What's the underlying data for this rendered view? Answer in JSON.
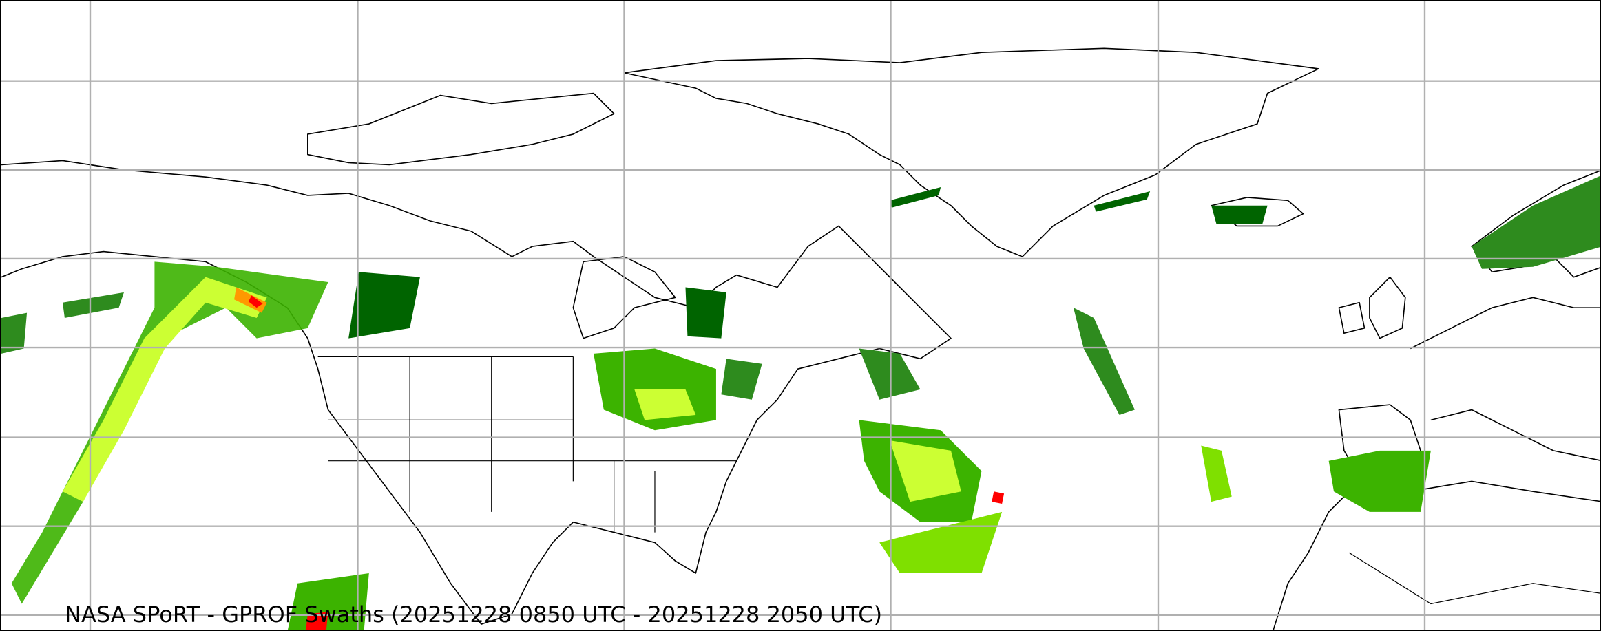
{
  "title": "NASA SPoRT - GPROF Swaths (20251228 0850 UTC - 20251228 2050 UTC)",
  "map": {
    "background": "#ffffff",
    "gridline_color": "#b0b0b0",
    "coastline_color": "#000000",
    "precip_colors": [
      "#006400",
      "#2e8b1e",
      "#3cb300",
      "#7fe000",
      "#ccff33",
      "#ffff00",
      "#ff9900",
      "#ff0000"
    ]
  }
}
